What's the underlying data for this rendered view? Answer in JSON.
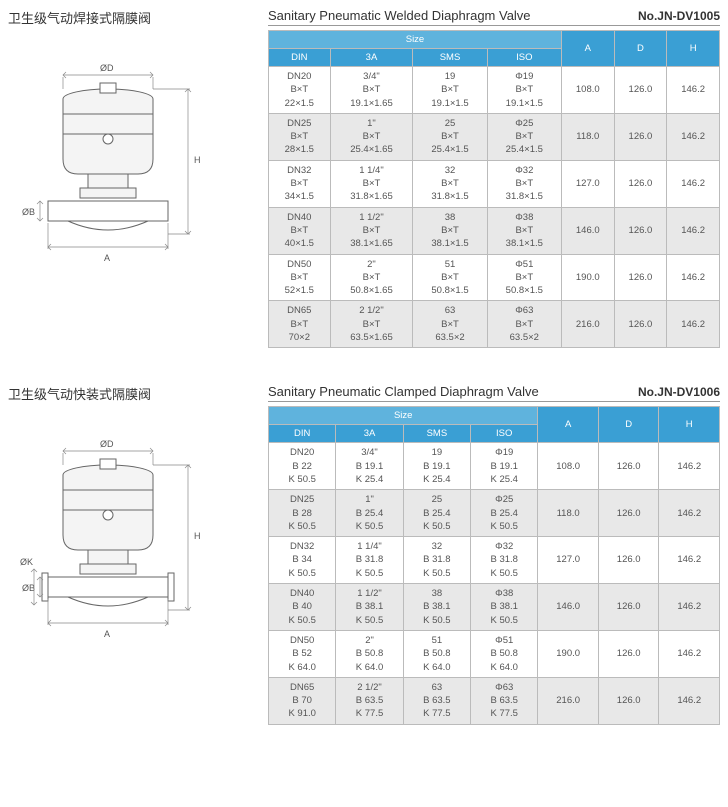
{
  "sections": [
    {
      "cn_title": "卫生级气动焊接式隔膜阀",
      "en_title": "Sanitary Pneumatic Welded Diaphragm Valve",
      "model_no": "No.JN-DV1005",
      "size_label": "Size",
      "headers": [
        "DIN",
        "3A",
        "SMS",
        "ISO",
        "A",
        "D",
        "H"
      ],
      "rows": [
        {
          "din": "DN20\nB×T\n22×1.5",
          "a3": "3/4\"\nB×T\n19.1×1.65",
          "sms": "19\nB×T\n19.1×1.5",
          "iso": "Φ19\nB×T\n19.1×1.5",
          "a": "108.0",
          "d": "126.0",
          "h": "146.2",
          "alt": false
        },
        {
          "din": "DN25\nB×T\n28×1.5",
          "a3": "1\"\nB×T\n25.4×1.65",
          "sms": "25\nB×T\n25.4×1.5",
          "iso": "Φ25\nB×T\n25.4×1.5",
          "a": "118.0",
          "d": "126.0",
          "h": "146.2",
          "alt": true
        },
        {
          "din": "DN32\nB×T\n34×1.5",
          "a3": "1 1/4\"\nB×T\n31.8×1.65",
          "sms": "32\nB×T\n31.8×1.5",
          "iso": "Φ32\nB×T\n31.8×1.5",
          "a": "127.0",
          "d": "126.0",
          "h": "146.2",
          "alt": false
        },
        {
          "din": "DN40\nB×T\n40×1.5",
          "a3": "1 1/2\"\nB×T\n38.1×1.65",
          "sms": "38\nB×T\n38.1×1.5",
          "iso": "Φ38\nB×T\n38.1×1.5",
          "a": "146.0",
          "d": "126.0",
          "h": "146.2",
          "alt": true
        },
        {
          "din": "DN50\nB×T\n52×1.5",
          "a3": "2\"\nB×T\n50.8×1.65",
          "sms": "51\nB×T\n50.8×1.5",
          "iso": "Φ51\nB×T\n50.8×1.5",
          "a": "190.0",
          "d": "126.0",
          "h": "146.2",
          "alt": false
        },
        {
          "din": "DN65\nB×T\n70×2",
          "a3": "2 1/2\"\nB×T\n63.5×1.65",
          "sms": "63\nB×T\n63.5×2",
          "iso": "Φ63\nB×T\n63.5×2",
          "a": "216.0",
          "d": "126.0",
          "h": "146.2",
          "alt": true
        }
      ],
      "diagram_labels": {
        "top": "ØD",
        "left": "ØB",
        "right": "H",
        "bottom": "A"
      }
    },
    {
      "cn_title": "卫生级气动快装式隔膜阀",
      "en_title": "Sanitary Pneumatic Clamped Diaphragm Valve",
      "model_no": "No.JN-DV1006",
      "size_label": "Size",
      "headers": [
        "DIN",
        "3A",
        "SMS",
        "ISO",
        "A",
        "D",
        "H"
      ],
      "rows": [
        {
          "din": "DN20\nB 22\nK 50.5",
          "a3": "3/4\"\nB 19.1\nK 25.4",
          "sms": "19\nB 19.1\nK 25.4",
          "iso": "Φ19\nB 19.1\nK 25.4",
          "a": "108.0",
          "d": "126.0",
          "h": "146.2",
          "alt": false
        },
        {
          "din": "DN25\nB 28\nK 50.5",
          "a3": "1\"\nB 25.4\nK 50.5",
          "sms": "25\nB 25.4\nK 50.5",
          "iso": "Φ25\nB 25.4\nK 50.5",
          "a": "118.0",
          "d": "126.0",
          "h": "146.2",
          "alt": true
        },
        {
          "din": "DN32\nB 34\nK 50.5",
          "a3": "1 1/4\"\nB 31.8\nK 50.5",
          "sms": "32\nB 31.8\nK 50.5",
          "iso": "Φ32\nB 31.8\nK 50.5",
          "a": "127.0",
          "d": "126.0",
          "h": "146.2",
          "alt": false
        },
        {
          "din": "DN40\nB 40\nK 50.5",
          "a3": "1 1/2\"\nB 38.1\nK 50.5",
          "sms": "38\nB 38.1\nK 50.5",
          "iso": "Φ38\nB 38.1\nK 50.5",
          "a": "146.0",
          "d": "126.0",
          "h": "146.2",
          "alt": true
        },
        {
          "din": "DN50\nB 52\nK 64.0",
          "a3": "2\"\nB 50.8\nK 64.0",
          "sms": "51\nB 50.8\nK 64.0",
          "iso": "Φ51\nB 50.8\nK 64.0",
          "a": "190.0",
          "d": "126.0",
          "h": "146.2",
          "alt": false
        },
        {
          "din": "DN65\nB 70\nK 91.0",
          "a3": "2 1/2\"\nB 63.5\nK 77.5",
          "sms": "63\nB 63.5\nK 77.5",
          "iso": "Φ63\nB 63.5\nK 77.5",
          "a": "216.0",
          "d": "126.0",
          "h": "146.2",
          "alt": true
        }
      ],
      "diagram_labels": {
        "top": "ØD",
        "left": "ØB",
        "right": "H",
        "bottom": "A",
        "left2": "ØK"
      }
    }
  ],
  "colors": {
    "header_blue": "#3a9fd4",
    "size_blue": "#5fb3dd",
    "alt_row": "#e8e8e8",
    "border": "#bbbbbb",
    "text": "#555555"
  }
}
